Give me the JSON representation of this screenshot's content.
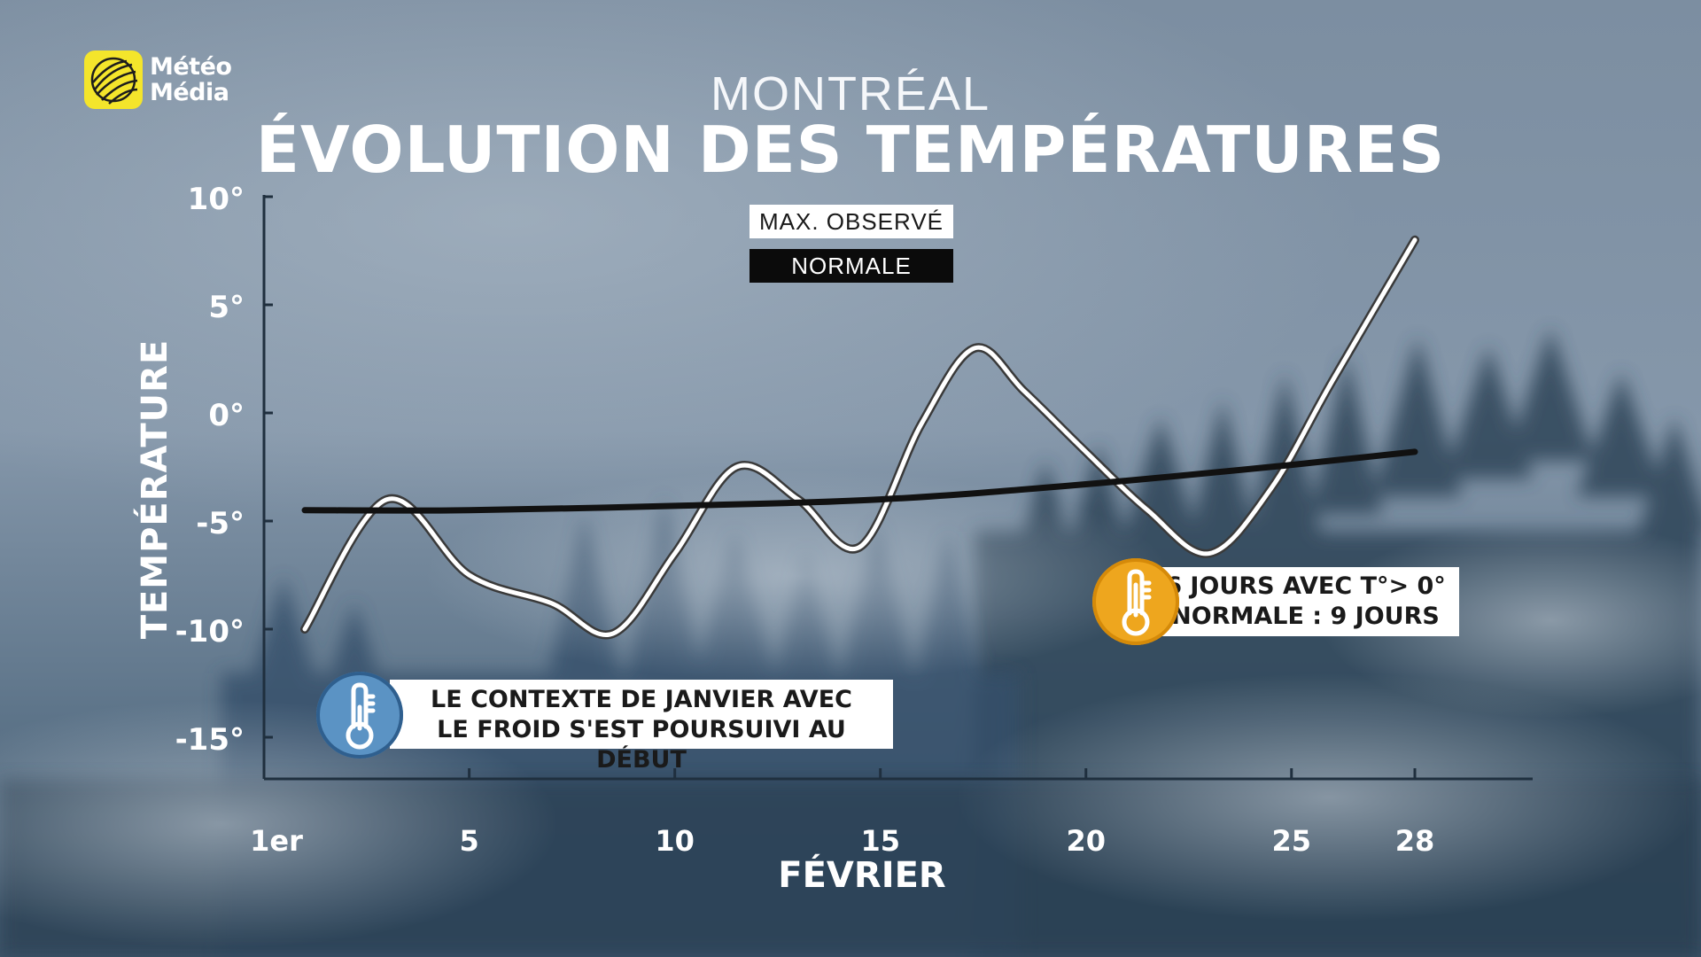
{
  "brand": {
    "name_line1": "Météo",
    "name_line2": "Média"
  },
  "title": {
    "city": "MONTRÉAL",
    "headline": "ÉVOLUTION DES TEMPÉRATURES"
  },
  "colors": {
    "observed": "#ffffff",
    "normal": "#111111",
    "badge_cold": "#5b93c4",
    "badge_warm": "#eea61e",
    "logo": "#f4e52b"
  },
  "legend": {
    "observed": "MAX. OBSERVÉ",
    "normal": "NORMALE"
  },
  "annotations": {
    "cold": {
      "icon": "thermometer-cold-icon",
      "line1": "LE CONTEXTE DE JANVIER AVEC",
      "line2": "LE FROID S'EST POURSUIVI AU DÉBUT"
    },
    "warm": {
      "icon": "thermometer-warm-icon",
      "line1": "6 JOURS AVEC T°> 0°",
      "line2": "NORMALE : 9 JOURS"
    }
  },
  "chart_data": {
    "type": "line",
    "xlabel": "FÉVRIER",
    "ylabel": "TEMPÉRATURE",
    "xlim": [
      0,
      32
    ],
    "ylim": [
      -17,
      10
    ],
    "x_ticks": [
      1,
      5,
      10,
      15,
      20,
      25,
      28
    ],
    "x_tick_labels": [
      "1er",
      "5",
      "10",
      "15",
      "20",
      "25",
      "28"
    ],
    "y_ticks": [
      10,
      5,
      0,
      -5,
      -10,
      -15
    ],
    "y_tick_labels": [
      "10°",
      "5°",
      "0°",
      "-5°",
      "-10°",
      "-15°"
    ],
    "grid": false,
    "legend_position": "top-center",
    "series": [
      {
        "name": "MAX. OBSERVÉ",
        "x": [
          1,
          3,
          5,
          7,
          8.5,
          10,
          11.5,
          13,
          14.5,
          16,
          17.3,
          18.5,
          20,
          21.5,
          23,
          24.5,
          26,
          28
        ],
        "y": [
          -10,
          -4,
          -7.5,
          -8.8,
          -10.2,
          -6.5,
          -2.5,
          -4,
          -6.2,
          -0.5,
          3,
          1,
          -1.8,
          -4.5,
          -6.5,
          -3.5,
          1.5,
          8
        ]
      },
      {
        "name": "NORMALE",
        "x": [
          1,
          5,
          10,
          15,
          20,
          25,
          28
        ],
        "y": [
          -4.5,
          -4.5,
          -4.3,
          -4.0,
          -3.3,
          -2.4,
          -1.8
        ]
      }
    ]
  }
}
